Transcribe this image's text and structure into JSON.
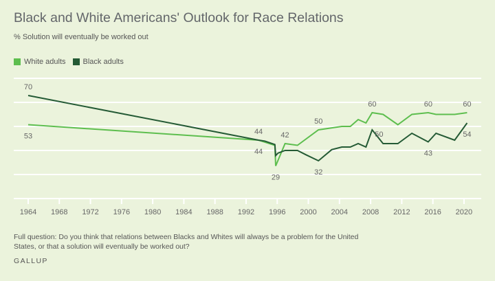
{
  "title": "Black and White Americans' Outlook for Race Relations",
  "subtitle": "% Solution will eventually be worked out",
  "footnote": "Full question: Do you think that relations between Blacks and Whites will always be a problem for the United States, or that a solution will eventually be worked out?",
  "brand": "GALLUP",
  "colors": {
    "background": "#ebf3dc",
    "white_adults": "#5dbe4e",
    "black_adults": "#245a35",
    "grid": "#ffffff",
    "text": "#666666"
  },
  "chart_data": {
    "type": "line",
    "title": "Black and White Americans' Outlook for Race Relations",
    "subtitle": "% Solution will eventually be worked out",
    "xlabel": "",
    "ylabel": "",
    "xlim": [
      1964,
      2022.5
    ],
    "ylim": [
      10,
      80
    ],
    "x_ticks": [
      1964,
      1968,
      1972,
      1976,
      1980,
      1984,
      1988,
      1992,
      1996,
      2000,
      2004,
      2008,
      2012,
      2016,
      2020
    ],
    "y_gridlines": [
      10,
      24,
      38,
      52,
      66,
      80
    ],
    "grid": true,
    "legend": {
      "position": "top-left",
      "entries": [
        "White adults",
        "Black adults"
      ]
    },
    "series": [
      {
        "name": "White adults",
        "color": "#5dbe4e",
        "points": [
          [
            1964,
            53
          ],
          [
            1993.6,
            44
          ],
          [
            1995.7,
            41
          ],
          [
            1995.8,
            29
          ],
          [
            1997.0,
            42
          ],
          [
            1998.6,
            41
          ],
          [
            2001.3,
            50
          ],
          [
            2004.3,
            52
          ],
          [
            2005.4,
            52
          ],
          [
            2006.4,
            56
          ],
          [
            2007.4,
            54
          ],
          [
            2008.2,
            60
          ],
          [
            2009.6,
            59
          ],
          [
            2011.5,
            53
          ],
          [
            2013.3,
            59
          ],
          [
            2015.4,
            60
          ],
          [
            2016.4,
            59
          ],
          [
            2018.8,
            59
          ],
          [
            2020.4,
            60
          ]
        ],
        "labels": [
          {
            "x": 1964,
            "value": "53",
            "pos": "below"
          },
          {
            "x": 1993.6,
            "value": "44",
            "pos": "below"
          },
          {
            "x": 1995.8,
            "value": "29",
            "pos": "below"
          },
          {
            "x": 1997.0,
            "value": "42",
            "pos": "above"
          },
          {
            "x": 2001.3,
            "value": "50",
            "pos": "above"
          },
          {
            "x": 2008.2,
            "value": "60",
            "pos": "above"
          },
          {
            "x": 2015.4,
            "value": "60",
            "pos": "above"
          },
          {
            "x": 2020.4,
            "value": "60",
            "pos": "above"
          }
        ]
      },
      {
        "name": "Black adults",
        "color": "#245a35",
        "points": [
          [
            1964,
            70
          ],
          [
            1993.6,
            44
          ],
          [
            1994.4,
            43.5
          ],
          [
            1995.7,
            41.5
          ],
          [
            1995.8,
            35
          ],
          [
            1996.1,
            36.5
          ],
          [
            1997.0,
            38
          ],
          [
            1998.6,
            38
          ],
          [
            1999.7,
            35.5
          ],
          [
            2001.3,
            32
          ],
          [
            2003.0,
            38.5
          ],
          [
            2004.3,
            40
          ],
          [
            2005.4,
            40
          ],
          [
            2006.4,
            42
          ],
          [
            2007.4,
            40
          ],
          [
            2008.2,
            50
          ],
          [
            2009.6,
            42
          ],
          [
            2011.5,
            42
          ],
          [
            2013.3,
            48
          ],
          [
            2015.4,
            43
          ],
          [
            2016.4,
            48
          ],
          [
            2018.8,
            44
          ],
          [
            2020.4,
            54
          ]
        ],
        "labels": [
          {
            "x": 1964,
            "value": "70",
            "pos": "above"
          },
          {
            "x": 1993.6,
            "value": "44",
            "pos": "above"
          },
          {
            "x": 2001.3,
            "value": "32",
            "pos": "below"
          },
          {
            "x": 2008.2,
            "value": "50",
            "pos": "right"
          },
          {
            "x": 2015.4,
            "value": "43",
            "pos": "below"
          },
          {
            "x": 2020.4,
            "value": "54",
            "pos": "below"
          }
        ]
      }
    ]
  }
}
